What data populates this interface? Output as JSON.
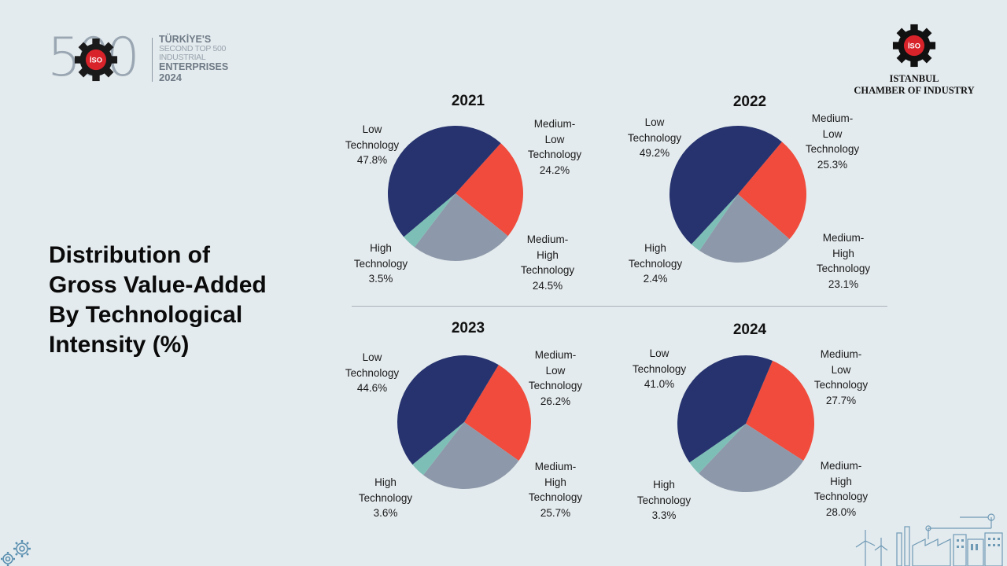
{
  "header": {
    "logo_number": "500",
    "logo_line1": "TÜRKİYE'S",
    "logo_line2": "SECOND TOP 500 INDUSTRIAL",
    "logo_line3": "ENTERPRISES",
    "logo_line4": "2024",
    "badge_text": "İSO",
    "org_line1": "ISTANBUL",
    "org_line2": "CHAMBER OF INDUSTRY"
  },
  "title_lines": [
    "Distribution of",
    "Gross Value-Added",
    "By Technological",
    "Intensity (%)"
  ],
  "colors": {
    "low": "#26336e",
    "medium_low": "#f04b3c",
    "medium_high": "#8d99aa",
    "high": "#7dbfb6",
    "iso_red": "#d8232a"
  },
  "chart_data": [
    {
      "type": "pie",
      "title": "2021",
      "slices": [
        {
          "key": "low",
          "label_lines": [
            "Low",
            "Technology"
          ],
          "value": 47.8,
          "value_text": "47.8%"
        },
        {
          "key": "medium_low",
          "label_lines": [
            "Medium-",
            "Low",
            "Technology"
          ],
          "value": 24.2,
          "value_text": "24.2%"
        },
        {
          "key": "medium_high",
          "label_lines": [
            "Medium-",
            "High",
            "Technology"
          ],
          "value": 24.5,
          "value_text": "24.5%"
        },
        {
          "key": "high",
          "label_lines": [
            "High",
            "Technology"
          ],
          "value": 3.5,
          "value_text": "3.5%"
        }
      ]
    },
    {
      "type": "pie",
      "title": "2022",
      "slices": [
        {
          "key": "low",
          "label_lines": [
            "Low",
            "Technology"
          ],
          "value": 49.2,
          "value_text": "49.2%"
        },
        {
          "key": "medium_low",
          "label_lines": [
            "Medium-",
            "Low",
            "Technology"
          ],
          "value": 25.3,
          "value_text": "25.3%"
        },
        {
          "key": "medium_high",
          "label_lines": [
            "Medium-",
            "High",
            "Technology"
          ],
          "value": 23.1,
          "value_text": "23.1%"
        },
        {
          "key": "high",
          "label_lines": [
            "High",
            "Technology"
          ],
          "value": 2.4,
          "value_text": "2.4%"
        }
      ]
    },
    {
      "type": "pie",
      "title": "2023",
      "slices": [
        {
          "key": "low",
          "label_lines": [
            "Low",
            "Technology"
          ],
          "value": 44.6,
          "value_text": "44.6%"
        },
        {
          "key": "medium_low",
          "label_lines": [
            "Medium-",
            "Low",
            "Technology"
          ],
          "value": 26.2,
          "value_text": "26.2%"
        },
        {
          "key": "medium_high",
          "label_lines": [
            "Medium-",
            "High",
            "Technology"
          ],
          "value": 25.7,
          "value_text": "25.7%"
        },
        {
          "key": "high",
          "label_lines": [
            "High",
            "Technology"
          ],
          "value": 3.6,
          "value_text": "3.6%"
        }
      ]
    },
    {
      "type": "pie",
      "title": "2024",
      "slices": [
        {
          "key": "low",
          "label_lines": [
            "Low",
            "Technology"
          ],
          "value": 41.0,
          "value_text": "41.0%"
        },
        {
          "key": "medium_low",
          "label_lines": [
            "Medium-",
            "Low",
            "Technology"
          ],
          "value": 27.7,
          "value_text": "27.7%"
        },
        {
          "key": "medium_high",
          "label_lines": [
            "Medium-",
            "High",
            "Technology"
          ],
          "value": 28.0,
          "value_text": "28.0%"
        },
        {
          "key": "high",
          "label_lines": [
            "High",
            "Technology"
          ],
          "value": 3.3,
          "value_text": "3.3%"
        }
      ]
    }
  ]
}
